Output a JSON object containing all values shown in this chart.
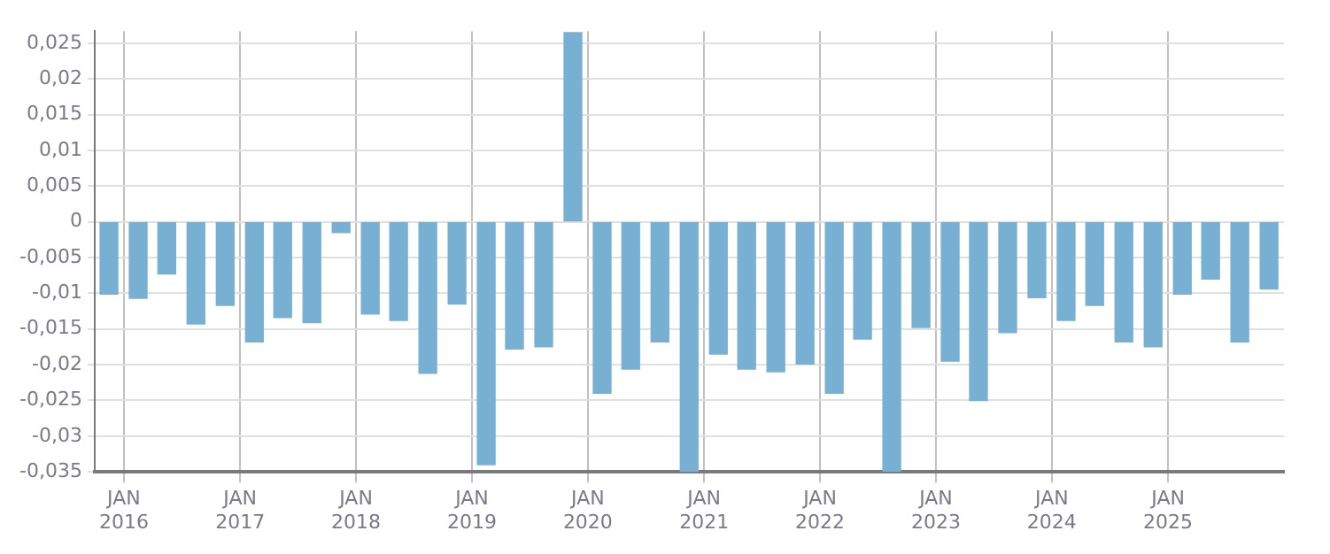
{
  "chart_data": {
    "type": "bar",
    "x": [
      "2015-11-15",
      "2016-02-15",
      "2016-05-15",
      "2016-08-15",
      "2016-11-15",
      "2017-02-15",
      "2017-05-15",
      "2017-08-15",
      "2017-11-15",
      "2018-02-15",
      "2018-05-15",
      "2018-08-15",
      "2018-11-15",
      "2019-02-15",
      "2019-05-15",
      "2019-08-15",
      "2019-11-15",
      "2020-02-15",
      "2020-05-15",
      "2020-08-15",
      "2020-11-15",
      "2021-02-15",
      "2021-05-15",
      "2021-08-15",
      "2021-11-15",
      "2022-02-15",
      "2022-05-15",
      "2022-08-15",
      "2022-11-15",
      "2023-02-15",
      "2023-05-15",
      "2023-08-15",
      "2023-11-15",
      "2024-02-15",
      "2024-05-15",
      "2024-08-15",
      "2024-11-15",
      "2025-02-15",
      "2025-05-15",
      "2025-08-15",
      "2025-11-15"
    ],
    "values": [
      -0.0101,
      -0.0107,
      -0.0073,
      -0.0143,
      -0.0117,
      -0.0168,
      -0.0134,
      -0.0141,
      -0.0015,
      -0.0129,
      -0.0138,
      -0.0212,
      -0.0115,
      -0.034,
      -0.0178,
      -0.0175,
      0.0265,
      -0.024,
      -0.0206,
      -0.0168,
      -0.035,
      -0.0185,
      -0.0206,
      -0.021,
      -0.0199,
      -0.024,
      -0.0164,
      -0.0349,
      -0.0148,
      -0.0195,
      -0.025,
      -0.0155,
      -0.0106,
      -0.0138,
      -0.0117,
      -0.0168,
      -0.0175,
      -0.0101,
      -0.008,
      -0.0168,
      -0.0094
    ],
    "color": "#78b0d3",
    "xlim": [
      "2015-10",
      "2026-01"
    ],
    "xticks": [
      {
        "value": "2016-01",
        "label": "JAN 2016"
      },
      {
        "value": "2017-01",
        "label": "JAN 2017"
      },
      {
        "value": "2018-01",
        "label": "JAN 2018"
      },
      {
        "value": "2019-01",
        "label": "JAN 2019"
      },
      {
        "value": "2020-01",
        "label": "JAN 2020"
      },
      {
        "value": "2021-01",
        "label": "JAN 2021"
      },
      {
        "value": "2022-01",
        "label": "JAN 2022"
      },
      {
        "value": "2023-01",
        "label": "JAN 2023"
      },
      {
        "value": "2024-01",
        "label": "JAN 2024"
      },
      {
        "value": "2025-01",
        "label": "JAN 2025"
      }
    ],
    "ylim": [
      -0.035,
      0.0267
    ],
    "yticks": [
      {
        "value": 0.025,
        "label": "0,025"
      },
      {
        "value": 0.02,
        "label": "0,02"
      },
      {
        "value": 0.015,
        "label": "0,015"
      },
      {
        "value": 0.01,
        "label": "0,01"
      },
      {
        "value": 0.005,
        "label": "0,005"
      },
      {
        "value": 0,
        "label": "0"
      },
      {
        "value": -0.005,
        "label": "-0,005"
      },
      {
        "value": -0.01,
        "label": "-0,01"
      },
      {
        "value": -0.015,
        "label": "-0,015"
      },
      {
        "value": -0.02,
        "label": "-0,02"
      },
      {
        "value": -0.025,
        "label": "-0,025"
      },
      {
        "value": -0.03,
        "label": "-0,03"
      },
      {
        "value": -0.035,
        "label": "-0,035"
      }
    ],
    "grid": true
  }
}
